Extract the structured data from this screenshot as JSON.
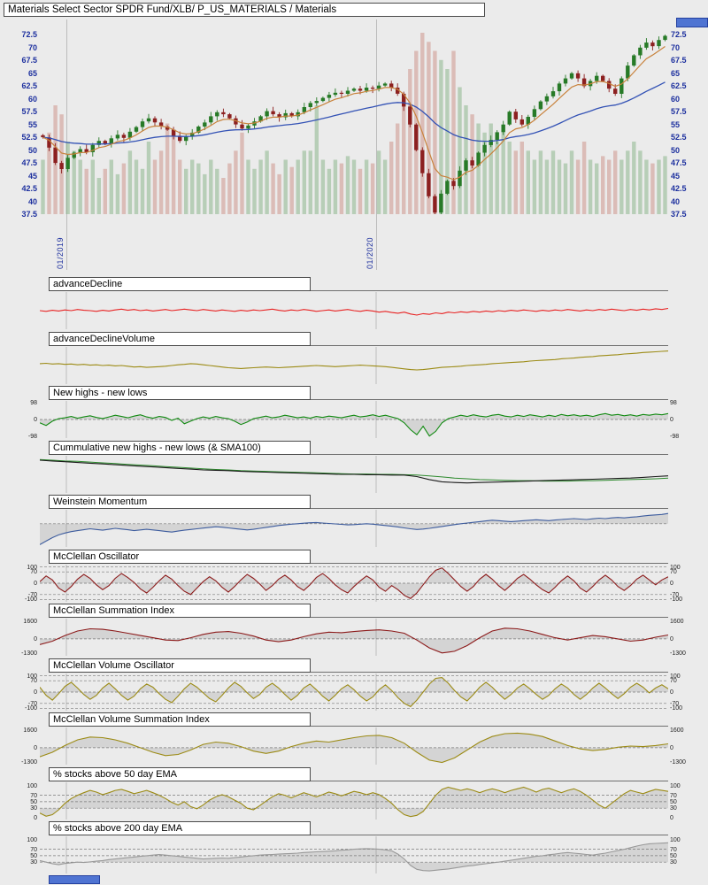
{
  "window": {
    "title": "Materials Select Sector SPDR Fund/XLB/ P_US_MATERIALS / Materials"
  },
  "colors": {
    "background": "#ebebeb",
    "grid": "#bcbcbc",
    "axis_price": "#1c2f9e",
    "tick": "#222222",
    "candle_up": "#277a27",
    "candle_down": "#8c2020",
    "volume_up": "rgba(120,170,120,0.45)",
    "volume_down": "rgba(200,130,120,0.45)",
    "ma_fast": "#c8823c",
    "ma_slow": "#3352b5",
    "fill": "rgba(110,110,110,0.18)",
    "control_blue": "#4f74d2"
  },
  "x_axis": {
    "date_labels": [
      {
        "label": "01/2019",
        "pos": 0.0423
      },
      {
        "label": "01/2020",
        "pos": 0.5352
      }
    ]
  },
  "chart_data": [
    {
      "type": "candlestick",
      "symbol": "XLB",
      "ylim": [
        37.5,
        75.5
      ],
      "y_ticks": [
        72.5,
        70,
        67.5,
        65,
        62.5,
        60,
        57.5,
        55,
        52.5,
        50,
        47.5,
        45,
        42.5,
        40,
        37.5
      ],
      "overlays": [
        "fast EMA",
        "slow EMA"
      ],
      "close": [
        52.5,
        50.5,
        47.5,
        46.3,
        48.5,
        49.5,
        50.2,
        49.6,
        51.0,
        51.8,
        51.2,
        52.3,
        53.0,
        52.4,
        53.6,
        54.5,
        55.6,
        56.2,
        55.4,
        54.6,
        54.0,
        52.8,
        51.8,
        52.6,
        53.4,
        54.6,
        55.4,
        56.6,
        57.4,
        57.0,
        56.2,
        55.0,
        54.2,
        54.8,
        55.6,
        56.6,
        57.6,
        57.0,
        56.4,
        57.2,
        56.6,
        57.4,
        58.4,
        59.2,
        59.6,
        60.2,
        60.8,
        61.2,
        61.0,
        61.6,
        62.0,
        61.6,
        62.2,
        62.0,
        62.6,
        63.0,
        62.2,
        61.0,
        58.5,
        55.0,
        50.0,
        45.5,
        41.0,
        37.8,
        41.5,
        44.0,
        43.0,
        46.0,
        48.0,
        47.0,
        49.5,
        51.0,
        52.0,
        53.5,
        55.0,
        57.5,
        56.0,
        55.0,
        56.5,
        58.0,
        59.5,
        60.5,
        61.5,
        63.0,
        64.0,
        65.0,
        64.0,
        62.5,
        63.5,
        64.5,
        63.5,
        62.0,
        61.0,
        64.0,
        66.5,
        68.5,
        70.0,
        71.0,
        70.3,
        71.5,
        72.3
      ],
      "volume": [
        0.3,
        0.45,
        0.6,
        0.55,
        0.4,
        0.35,
        0.3,
        0.25,
        0.3,
        0.2,
        0.25,
        0.3,
        0.22,
        0.28,
        0.35,
        0.3,
        0.25,
        0.4,
        0.3,
        0.35,
        0.5,
        0.45,
        0.3,
        0.25,
        0.3,
        0.28,
        0.22,
        0.3,
        0.25,
        0.2,
        0.28,
        0.35,
        0.45,
        0.3,
        0.25,
        0.3,
        0.35,
        0.28,
        0.22,
        0.3,
        0.26,
        0.3,
        0.35,
        0.35,
        0.6,
        0.3,
        0.25,
        0.3,
        0.28,
        0.32,
        0.3,
        0.25,
        0.3,
        0.28,
        0.35,
        0.3,
        0.4,
        0.5,
        0.65,
        0.8,
        0.9,
        1.0,
        0.95,
        0.9,
        0.85,
        0.8,
        0.9,
        0.7,
        0.6,
        0.55,
        0.5,
        0.45,
        0.5,
        0.4,
        0.45,
        0.4,
        0.35,
        0.4,
        0.35,
        0.3,
        0.35,
        0.3,
        0.35,
        0.3,
        0.28,
        0.35,
        0.3,
        0.4,
        0.3,
        0.28,
        0.32,
        0.3,
        0.35,
        0.3,
        0.35,
        0.4,
        0.35,
        0.3,
        0.28,
        0.3,
        0.32
      ]
    },
    {
      "type": "line",
      "label": "advanceDecline",
      "color": "#e82222",
      "ylim": [
        0,
        100
      ],
      "ticks": [],
      "dashed": [],
      "fill_level": null,
      "values": [
        50,
        48,
        51,
        49,
        52,
        50,
        53,
        51,
        50,
        48,
        51,
        49,
        52,
        54,
        51,
        53,
        50,
        52,
        49,
        51,
        53,
        50,
        52,
        54,
        52,
        50,
        53,
        51,
        49,
        52,
        50,
        48,
        51,
        49,
        52,
        50,
        52,
        54,
        51,
        49,
        52,
        50,
        53,
        51,
        48,
        50,
        52,
        49,
        51,
        53,
        50,
        48,
        51,
        49,
        46,
        48,
        45,
        43,
        46,
        41,
        38,
        42,
        40,
        44,
        42,
        46,
        44,
        47,
        45,
        48,
        46,
        49,
        47,
        50,
        48,
        51,
        49,
        52,
        50,
        48,
        51,
        49,
        52,
        50,
        53,
        51,
        49,
        52,
        50,
        53,
        51,
        54,
        52,
        50,
        53,
        51,
        54,
        52,
        55,
        53,
        56
      ]
    },
    {
      "type": "line",
      "label": "advanceDeclineVolume",
      "color": "#9c8b15",
      "ylim": [
        0,
        100
      ],
      "ticks": [],
      "dashed": [],
      "fill_level": null,
      "values": [
        55,
        56,
        54,
        55,
        53,
        54,
        52,
        53,
        51,
        52,
        50,
        51,
        49,
        50,
        48,
        46,
        47,
        45,
        46,
        47,
        48,
        50,
        52,
        53,
        55,
        54,
        52,
        50,
        48,
        46,
        44,
        43,
        42,
        43,
        44,
        45,
        46,
        45,
        44,
        45,
        46,
        47,
        48,
        49,
        50,
        49,
        48,
        47,
        48,
        49,
        50,
        51,
        50,
        49,
        48,
        47,
        45,
        43,
        41,
        39,
        38,
        39,
        41,
        43,
        45,
        46,
        47,
        48,
        50,
        51,
        52,
        53,
        55,
        56,
        57,
        58,
        59,
        60,
        62,
        63,
        64,
        65,
        66,
        68,
        69,
        70,
        72,
        73,
        74,
        76,
        77,
        78,
        79,
        81,
        82,
        83,
        85,
        86,
        87,
        88,
        89
      ]
    },
    {
      "type": "line",
      "label": "New highs - new lows",
      "color": "#118a11",
      "ylim": [
        -110,
        110
      ],
      "ticks": [
        98,
        0,
        -98
      ],
      "dashed": [
        0
      ],
      "fill_level": 0,
      "values": [
        -20,
        -35,
        -10,
        5,
        10,
        18,
        8,
        15,
        22,
        12,
        6,
        15,
        25,
        18,
        10,
        20,
        28,
        15,
        8,
        18,
        12,
        -5,
        8,
        -25,
        -10,
        5,
        15,
        8,
        18,
        10,
        5,
        -10,
        -30,
        -15,
        5,
        12,
        20,
        10,
        15,
        25,
        18,
        10,
        15,
        8,
        18,
        12,
        20,
        15,
        10,
        18,
        25,
        15,
        20,
        28,
        18,
        25,
        15,
        5,
        -20,
        -60,
        -90,
        -40,
        -98,
        -70,
        -20,
        5,
        15,
        25,
        18,
        28,
        20,
        15,
        25,
        30,
        20,
        15,
        25,
        18,
        28,
        22,
        15,
        25,
        18,
        30,
        22,
        28,
        20,
        25,
        18,
        28,
        35,
        25,
        30,
        22,
        28,
        20,
        30,
        25,
        32,
        28,
        35
      ]
    },
    {
      "type": "line",
      "label": "Cummulative new highs - new lows (& SMA100)",
      "color": "#1a1a1a",
      "color2": "#2d8a2d",
      "ylim": [
        0,
        100
      ],
      "ticks": [],
      "dashed": [],
      "fill_level": null,
      "values": [
        88,
        86,
        84,
        82,
        80,
        78,
        76,
        74,
        72,
        70,
        68,
        66,
        64,
        62,
        61,
        60,
        58,
        57,
        56,
        55,
        54,
        53,
        52,
        51,
        50,
        50,
        49,
        49,
        48,
        48,
        44,
        36,
        30,
        28,
        27,
        28,
        29,
        30,
        31,
        32,
        33,
        34,
        35,
        36,
        37,
        38,
        39,
        40,
        42,
        44,
        46
      ],
      "values2": [
        90,
        88,
        86,
        85,
        83,
        81,
        79,
        77,
        75,
        73,
        71,
        69,
        67,
        65,
        63,
        62,
        60,
        59,
        58,
        57,
        56,
        55,
        54,
        53,
        52,
        51,
        51,
        50,
        50,
        49,
        48,
        46,
        43,
        40,
        38,
        36,
        35,
        34,
        33,
        33,
        32,
        32,
        32,
        33,
        33,
        34,
        35,
        36,
        37,
        38,
        40
      ]
    },
    {
      "type": "line",
      "label": "Weinstein Momentum",
      "color": "#3d5c9e",
      "ylim": [
        -100,
        60
      ],
      "ticks": [],
      "dashed": [
        0
      ],
      "fill_level": 0,
      "values": [
        -90,
        -75,
        -60,
        -48,
        -40,
        -34,
        -30,
        -26,
        -22,
        -25,
        -28,
        -24,
        -20,
        -23,
        -26,
        -30,
        -27,
        -24,
        -27,
        -30,
        -33,
        -36,
        -32,
        -28,
        -25,
        -22,
        -19,
        -16,
        -13,
        -15,
        -18,
        -21,
        -24,
        -27,
        -24,
        -20,
        -16,
        -12,
        -8,
        -5,
        -2,
        0,
        2,
        4,
        5,
        3,
        1,
        -1,
        -3,
        -5,
        -4,
        -2,
        0,
        -2,
        -5,
        -8,
        -11,
        -14,
        -18,
        -22,
        -25,
        -23,
        -20,
        -16,
        -12,
        -8,
        -4,
        0,
        3,
        6,
        9,
        12,
        15,
        13,
        11,
        9,
        11,
        13,
        15,
        17,
        15,
        13,
        16,
        18,
        20,
        22,
        20,
        18,
        21,
        24,
        22,
        25,
        27,
        25,
        28,
        30,
        33,
        36,
        38,
        40,
        44
      ]
    },
    {
      "type": "line",
      "label": "McClellan Oscillator",
      "color": "#8c1a1a",
      "ylim": [
        -115,
        115
      ],
      "ticks": [
        100,
        70,
        0,
        -70,
        -100
      ],
      "dashed": [
        100,
        70,
        0,
        -70,
        -100
      ],
      "fill_level": 0,
      "values": [
        10,
        45,
        20,
        -30,
        -55,
        -20,
        25,
        55,
        30,
        -10,
        -40,
        -15,
        30,
        60,
        35,
        5,
        -35,
        -60,
        -25,
        15,
        50,
        25,
        -15,
        -50,
        -70,
        -30,
        10,
        40,
        15,
        -25,
        -55,
        -20,
        20,
        55,
        30,
        -5,
        -45,
        -15,
        25,
        50,
        20,
        -20,
        -45,
        -10,
        35,
        60,
        30,
        -10,
        -40,
        -60,
        -20,
        15,
        45,
        20,
        -25,
        -50,
        -15,
        -40,
        -75,
        -95,
        -60,
        -10,
        40,
        80,
        95,
        60,
        20,
        -20,
        -50,
        -20,
        25,
        55,
        25,
        -15,
        -45,
        -10,
        30,
        55,
        25,
        -10,
        -40,
        -60,
        -25,
        15,
        45,
        15,
        -30,
        -55,
        -20,
        20,
        50,
        20,
        -20,
        -45,
        -15,
        25,
        50,
        20,
        -10,
        20,
        40
      ]
    },
    {
      "type": "line",
      "label": "McClellan Summation Index",
      "color": "#8c1a1a",
      "ylim": [
        -1500,
        1800
      ],
      "ticks": [
        1600,
        0,
        -1300
      ],
      "dashed": [
        0
      ],
      "fill_level": 0,
      "values": [
        -500,
        -200,
        300,
        700,
        900,
        850,
        700,
        500,
        300,
        100,
        -100,
        -150,
        100,
        400,
        600,
        650,
        500,
        250,
        -100,
        -250,
        -100,
        200,
        450,
        600,
        550,
        650,
        750,
        800,
        700,
        500,
        -100,
        -800,
        -1250,
        -1100,
        -600,
        100,
        700,
        950,
        900,
        700,
        400,
        100,
        -100,
        100,
        300,
        200,
        0,
        -200,
        -100,
        150,
        350
      ]
    },
    {
      "type": "line",
      "label": "McClellan Volume Oscillator",
      "color": "#9c8b15",
      "ylim": [
        -115,
        115
      ],
      "ticks": [
        100,
        70,
        0,
        -70,
        -100
      ],
      "dashed": [
        100,
        70,
        0,
        -70,
        -100
      ],
      "fill_level": 0,
      "values": [
        30,
        -20,
        -50,
        -10,
        35,
        60,
        25,
        -15,
        -45,
        -20,
        25,
        55,
        20,
        -20,
        -50,
        -25,
        20,
        50,
        30,
        -10,
        -45,
        -65,
        -25,
        20,
        55,
        30,
        -5,
        -40,
        -60,
        -20,
        25,
        60,
        35,
        -5,
        -40,
        -15,
        30,
        55,
        25,
        -15,
        -50,
        -20,
        25,
        50,
        15,
        -25,
        -55,
        -20,
        20,
        45,
        15,
        -25,
        -55,
        -30,
        15,
        45,
        10,
        -35,
        -70,
        -90,
        -50,
        0,
        50,
        85,
        90,
        55,
        10,
        -30,
        -55,
        -15,
        30,
        60,
        30,
        -10,
        -45,
        -15,
        25,
        50,
        20,
        -15,
        -45,
        -20,
        20,
        50,
        25,
        -15,
        -45,
        -15,
        25,
        55,
        25,
        -10,
        -40,
        -10,
        30,
        55,
        30,
        -5,
        25,
        45,
        20
      ]
    },
    {
      "type": "line",
      "label": "McClellan Volume Summation Index",
      "color": "#9c8b15",
      "ylim": [
        -1500,
        1800
      ],
      "ticks": [
        1600,
        0,
        -1300
      ],
      "dashed": [
        0
      ],
      "fill_level": 0,
      "values": [
        -800,
        -400,
        200,
        700,
        950,
        900,
        700,
        400,
        0,
        -400,
        -700,
        -600,
        -200,
        300,
        500,
        400,
        100,
        -300,
        -500,
        -300,
        100,
        400,
        600,
        500,
        700,
        900,
        1050,
        1100,
        900,
        400,
        -400,
        -1100,
        -1300,
        -900,
        -200,
        500,
        1000,
        1250,
        1300,
        1200,
        1000,
        600,
        200,
        -100,
        -250,
        -150,
        50,
        150,
        100,
        200,
        350
      ]
    },
    {
      "type": "line",
      "label": "% stocks above 50 day EMA",
      "color": "#9c8b15",
      "ylim": [
        -5,
        110
      ],
      "ticks": [
        100,
        70,
        50,
        30,
        0
      ],
      "dashed": [
        70,
        50,
        30
      ],
      "fill_level": 30,
      "values": [
        15,
        5,
        10,
        25,
        45,
        60,
        70,
        78,
        85,
        80,
        72,
        78,
        85,
        88,
        82,
        75,
        80,
        85,
        78,
        70,
        60,
        48,
        40,
        50,
        35,
        28,
        40,
        55,
        65,
        72,
        65,
        55,
        45,
        30,
        25,
        38,
        52,
        65,
        75,
        70,
        62,
        70,
        78,
        72,
        65,
        72,
        80,
        75,
        68,
        75,
        82,
        78,
        72,
        78,
        72,
        60,
        45,
        25,
        10,
        4,
        8,
        20,
        45,
        70,
        88,
        95,
        90,
        85,
        90,
        85,
        78,
        85,
        90,
        85,
        78,
        85,
        90,
        95,
        88,
        80,
        88,
        92,
        85,
        78,
        85,
        90,
        82,
        70,
        55,
        40,
        30,
        45,
        60,
        75,
        85,
        80,
        75,
        82,
        88,
        85,
        82
      ]
    },
    {
      "type": "line",
      "label": "% stocks above 200 day EMA",
      "color": "#999999",
      "ylim": [
        -5,
        110
      ],
      "ticks": [
        100,
        70,
        50,
        30
      ],
      "dashed": [
        70,
        50,
        30
      ],
      "fill_level": 30,
      "values": [
        35,
        30,
        25,
        22,
        26,
        28,
        30,
        29,
        31,
        33,
        35,
        38,
        40,
        42,
        44,
        46,
        48,
        50,
        52,
        54,
        52,
        50,
        48,
        46,
        44,
        42,
        40,
        41,
        42,
        43,
        42,
        44,
        46,
        48,
        50,
        52,
        53,
        54,
        55,
        56,
        57,
        58,
        60,
        61,
        62,
        63,
        64,
        65,
        67,
        68,
        70,
        71,
        72,
        71,
        70,
        68,
        65,
        55,
        40,
        20,
        8,
        4,
        3,
        5,
        7,
        9,
        12,
        15,
        18,
        20,
        23,
        25,
        28,
        30,
        33,
        36,
        39,
        42,
        45,
        48,
        50,
        53,
        55,
        58,
        60,
        58,
        56,
        54,
        52,
        55,
        58,
        62,
        66,
        70,
        75,
        80,
        84,
        87,
        88,
        89,
        90
      ]
    }
  ]
}
